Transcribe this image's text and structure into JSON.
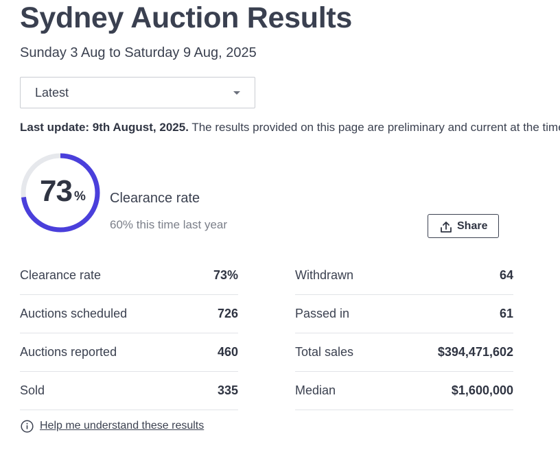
{
  "header": {
    "title": "Sydney Auction Results",
    "date_range": "Sunday 3 Aug to Saturday 9 Aug, 2025"
  },
  "filter": {
    "selected": "Latest"
  },
  "update": {
    "label": "Last update: 9th August, 2025.",
    "text": " The results provided on this page are preliminary and current at the time of publication."
  },
  "gauge": {
    "value": "73",
    "unit": "%",
    "fraction": 0.73,
    "label": "Clearance rate",
    "comparison": "60% this time last year",
    "accent_color": "#4a3fdb",
    "track_color": "#e6e8ec"
  },
  "share": {
    "label": "Share",
    "icon": "share-upload-icon"
  },
  "stats": {
    "left": [
      {
        "label": "Clearance rate",
        "value": "73%"
      },
      {
        "label": "Auctions scheduled",
        "value": "726"
      },
      {
        "label": "Auctions reported",
        "value": "460"
      },
      {
        "label": "Sold",
        "value": "335"
      }
    ],
    "right": [
      {
        "label": "Withdrawn",
        "value": "64"
      },
      {
        "label": "Passed in",
        "value": "61"
      },
      {
        "label": "Total sales",
        "value": "$394,471,602"
      },
      {
        "label": "Median",
        "value": "$1,600,000"
      }
    ]
  },
  "help": {
    "label": "Help me understand these results",
    "icon": "info-circle-icon"
  }
}
